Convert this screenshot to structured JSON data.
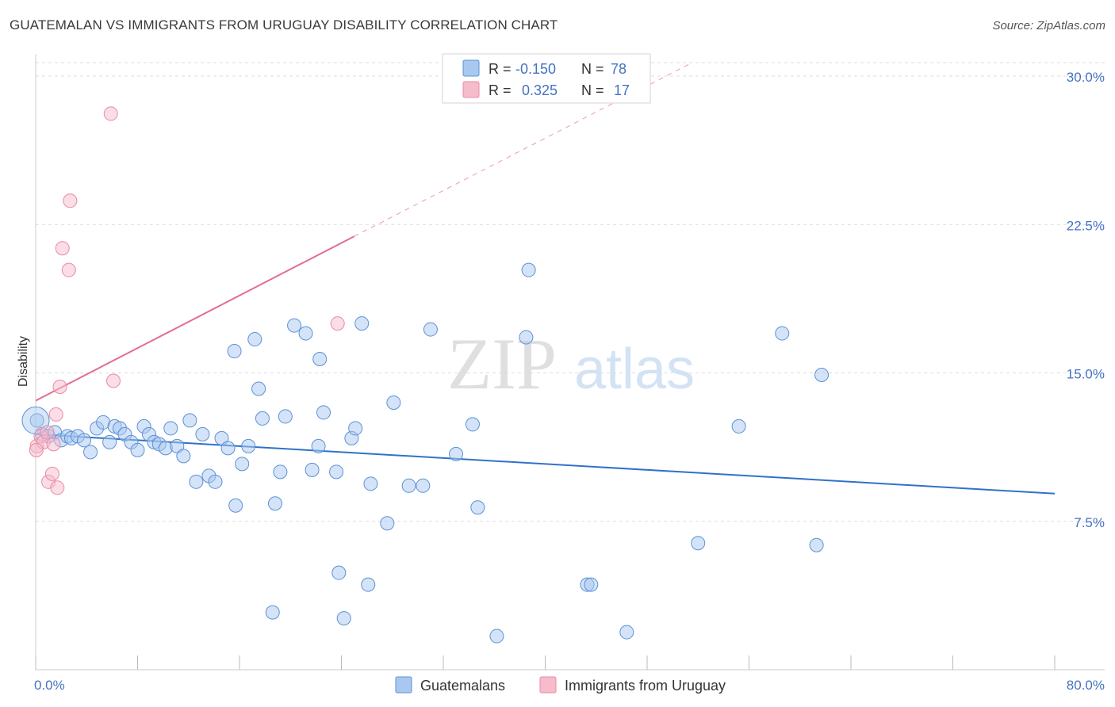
{
  "header": {
    "title": "GUATEMALAN VS IMMIGRANTS FROM URUGUAY DISABILITY CORRELATION CHART",
    "source": "Source: ZipAtlas.com"
  },
  "watermark": {
    "zip": "ZIP",
    "atlas": "atlas"
  },
  "colors": {
    "blue_fill": "#a9c8ef",
    "blue_stroke": "#5b92d6",
    "blue_line": "#2f72c9",
    "pink_fill": "#f6bccb",
    "pink_stroke": "#e98aa6",
    "pink_line": "#e26d92",
    "grid": "#dddddd",
    "tick_text": "#4472c4"
  },
  "legend": {
    "rows": [
      {
        "r_label": "R =",
        "r_value": "-0.150",
        "n_label": "N =",
        "n_value": "78"
      },
      {
        "r_label": "R =",
        "r_value": "0.325",
        "n_label": "N =",
        "n_value": "17"
      }
    ]
  },
  "bottom_legend": {
    "series1": "Guatemalans",
    "series2": "Immigrants from Uruguay"
  },
  "chart_data": {
    "type": "scatter",
    "title": "GUATEMALAN VS IMMIGRANTS FROM URUGUAY DISABILITY CORRELATION CHART",
    "xlabel": "",
    "ylabel": "Disability",
    "xlim": [
      0,
      80
    ],
    "ylim": [
      0,
      30
    ],
    "x_tick_labels": [
      "0.0%",
      "80.0%"
    ],
    "y_tick_labels": [
      "7.5%",
      "15.0%",
      "22.5%",
      "30.0%"
    ],
    "y_ticks": [
      7.5,
      15.0,
      22.5,
      30.0
    ],
    "grid": true,
    "series": [
      {
        "name": "Guatemalans",
        "r": -0.15,
        "n": 78,
        "trend": {
          "x": [
            0,
            80
          ],
          "y": [
            11.9,
            8.9
          ]
        },
        "points": [
          [
            0.1,
            12.6
          ],
          [
            0.5,
            11.9
          ],
          [
            1.0,
            11.8
          ],
          [
            1.5,
            12.0
          ],
          [
            2.0,
            11.6
          ],
          [
            2.5,
            11.8
          ],
          [
            2.8,
            11.7
          ],
          [
            3.3,
            11.8
          ],
          [
            3.8,
            11.6
          ],
          [
            4.3,
            11.0
          ],
          [
            4.8,
            12.2
          ],
          [
            5.3,
            12.5
          ],
          [
            5.8,
            11.5
          ],
          [
            6.2,
            12.3
          ],
          [
            6.6,
            12.2
          ],
          [
            7.0,
            11.9
          ],
          [
            7.5,
            11.5
          ],
          [
            8.0,
            11.1
          ],
          [
            8.5,
            12.3
          ],
          [
            8.9,
            11.9
          ],
          [
            9.3,
            11.5
          ],
          [
            9.7,
            11.4
          ],
          [
            10.2,
            11.2
          ],
          [
            10.6,
            12.2
          ],
          [
            11.1,
            11.3
          ],
          [
            11.6,
            10.8
          ],
          [
            12.1,
            12.6
          ],
          [
            12.6,
            9.5
          ],
          [
            13.1,
            11.9
          ],
          [
            13.6,
            9.8
          ],
          [
            14.1,
            9.5
          ],
          [
            14.6,
            11.7
          ],
          [
            15.1,
            11.2
          ],
          [
            15.6,
            16.1
          ],
          [
            15.7,
            8.3
          ],
          [
            16.2,
            10.4
          ],
          [
            16.7,
            11.3
          ],
          [
            17.2,
            16.7
          ],
          [
            17.5,
            14.2
          ],
          [
            17.8,
            12.7
          ],
          [
            18.6,
            2.9
          ],
          [
            18.8,
            8.4
          ],
          [
            19.2,
            10.0
          ],
          [
            19.6,
            12.8
          ],
          [
            20.3,
            17.4
          ],
          [
            21.2,
            17.0
          ],
          [
            21.7,
            10.1
          ],
          [
            22.2,
            11.3
          ],
          [
            22.3,
            15.7
          ],
          [
            22.6,
            13.0
          ],
          [
            23.6,
            10.0
          ],
          [
            23.8,
            4.9
          ],
          [
            24.2,
            2.6
          ],
          [
            24.8,
            11.7
          ],
          [
            25.1,
            12.2
          ],
          [
            25.6,
            17.5
          ],
          [
            26.1,
            4.3
          ],
          [
            26.3,
            9.4
          ],
          [
            27.6,
            7.4
          ],
          [
            28.1,
            13.5
          ],
          [
            29.3,
            9.3
          ],
          [
            30.4,
            9.3
          ],
          [
            31.0,
            17.2
          ],
          [
            33.0,
            10.9
          ],
          [
            34.3,
            12.4
          ],
          [
            34.7,
            8.2
          ],
          [
            36.2,
            1.7
          ],
          [
            38.5,
            16.8
          ],
          [
            38.7,
            20.2
          ],
          [
            43.3,
            4.3
          ],
          [
            43.6,
            4.3
          ],
          [
            46.4,
            1.9
          ],
          [
            52.0,
            6.4
          ],
          [
            55.2,
            12.3
          ],
          [
            58.6,
            17.0
          ],
          [
            61.3,
            6.3
          ],
          [
            61.7,
            14.9
          ],
          [
            0.0,
            12.6
          ]
        ]
      },
      {
        "name": "Immigrants from Uruguay",
        "r": 0.325,
        "n": 17,
        "trend": {
          "x": [
            0,
            25
          ],
          "y": [
            13.6,
            21.9
          ],
          "dashed_to": {
            "x": 51.3,
            "y": 30.6
          }
        },
        "points": [
          [
            0.1,
            11.3
          ],
          [
            0.4,
            11.8
          ],
          [
            0.6,
            11.5
          ],
          [
            0.9,
            12.0
          ],
          [
            1.0,
            9.5
          ],
          [
            1.3,
            9.9
          ],
          [
            1.4,
            11.4
          ],
          [
            1.6,
            12.9
          ],
          [
            1.7,
            9.2
          ],
          [
            1.9,
            14.3
          ],
          [
            2.1,
            21.3
          ],
          [
            2.6,
            20.2
          ],
          [
            2.7,
            23.7
          ],
          [
            5.9,
            28.1
          ],
          [
            6.1,
            14.6
          ],
          [
            23.7,
            17.5
          ],
          [
            0.05,
            11.1
          ]
        ]
      }
    ]
  }
}
